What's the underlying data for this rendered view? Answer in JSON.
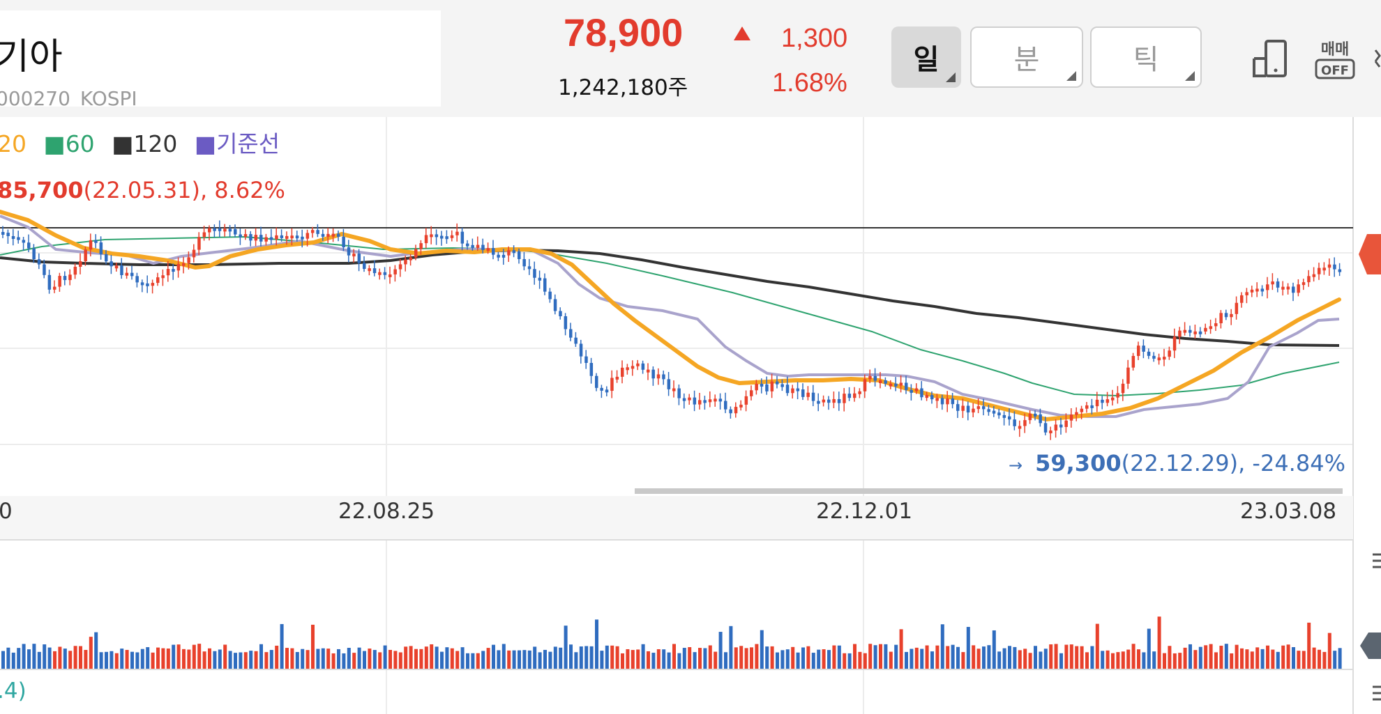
{
  "header": {
    "stock_name": "기아",
    "stock_code": "000270",
    "market": "KOSPI",
    "price": "78,900",
    "volume": "1,242,180주",
    "change": "1,300",
    "change_pct": "1.68%",
    "period_buttons": [
      {
        "label": "일",
        "active": true
      },
      {
        "label": "분",
        "active": false
      },
      {
        "label": "틱",
        "active": false
      }
    ],
    "trade_label": "매매",
    "trade_state": "OFF"
  },
  "legend": [
    {
      "label": "20",
      "color": "#f5a623"
    },
    {
      "label": "60",
      "color": "#2ea36f"
    },
    {
      "label": "120",
      "color": "#333333"
    },
    {
      "label": "기준선",
      "color": "#6b5bc3"
    }
  ],
  "annotations": {
    "high_value": "85,700",
    "high_detail": "(22.05.31), 8.62%",
    "low_arrow": "→",
    "low_value": "59,300",
    "low_detail": "(22.12.29), -24.84%"
  },
  "x_labels": [
    "22.08.25",
    "22.12.01",
    "23.03.08"
  ],
  "x_label_left_partial": "0",
  "indicator_label": ".4)",
  "colors": {
    "up": "#e8412c",
    "down": "#2f6cbf",
    "ma20": "#f5a623",
    "ma60": "#2ea36f",
    "ma120": "#333333",
    "base_line": "#6b5bc3",
    "conversion_line": "#a9a3cc",
    "current_price_marker": "#e8553a",
    "volume_marker": "#5b6570"
  },
  "chart_data": {
    "type": "candlestick",
    "x_range": [
      "22.05",
      "23.03"
    ],
    "y_range": [
      57000,
      88000
    ],
    "high": {
      "value": 85700,
      "date": "22.05.31"
    },
    "low": {
      "value": 59300,
      "date": "22.12.29"
    },
    "last_close": 78900,
    "series": [
      {
        "name": "20",
        "kind": "moving_average"
      },
      {
        "name": "60",
        "kind": "moving_average"
      },
      {
        "name": "120",
        "kind": "moving_average"
      },
      {
        "name": "기준선",
        "kind": "base_line"
      }
    ]
  }
}
